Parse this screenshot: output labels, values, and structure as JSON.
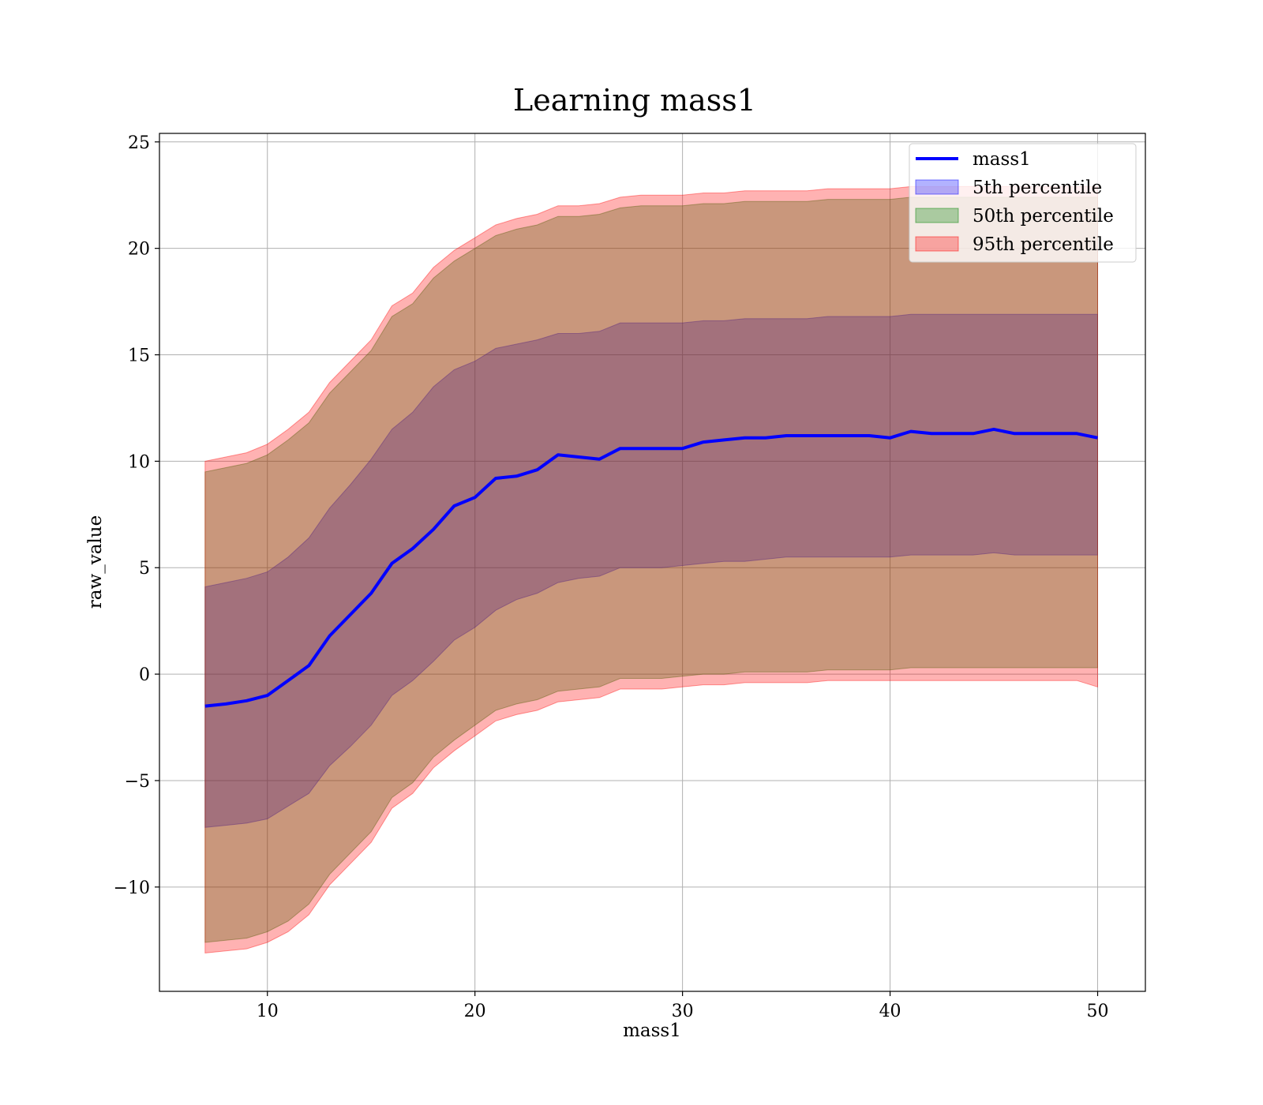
{
  "chart_data": {
    "type": "area",
    "title": "Learning mass1",
    "xlabel": "mass1",
    "ylabel": "raw_value",
    "xlim": [
      4.8,
      52.3
    ],
    "ylim": [
      -14.9,
      25.4
    ],
    "xticks": [
      10,
      20,
      30,
      40,
      50
    ],
    "xtick_labels": [
      "10",
      "20",
      "30",
      "40",
      "50"
    ],
    "yticks": [
      -10,
      -5,
      0,
      5,
      10,
      15,
      20,
      25
    ],
    "ytick_labels": [
      "−10",
      "−5",
      "0",
      "5",
      "10",
      "15",
      "20",
      "25"
    ],
    "grid": true,
    "legend_position": "top-right",
    "colors": {
      "line": "#0000ff",
      "band_5th": "#0000ff",
      "band_50th": "#008000",
      "band_95th": "#ff0000",
      "grid": "#b0b0b0"
    },
    "x": [
      7,
      8,
      9,
      10,
      11,
      12,
      13,
      14,
      15,
      16,
      17,
      18,
      19,
      20,
      21,
      22,
      23,
      24,
      25,
      26,
      27,
      28,
      29,
      30,
      31,
      32,
      33,
      34,
      35,
      36,
      37,
      38,
      39,
      40,
      41,
      42,
      43,
      44,
      45,
      46,
      47,
      48,
      49,
      50
    ],
    "series": [
      {
        "name": "mass1",
        "kind": "line",
        "values": [
          -1.5,
          -1.4,
          -1.25,
          -1.0,
          -0.3,
          0.4,
          1.8,
          2.8,
          3.8,
          5.2,
          5.9,
          6.8,
          7.9,
          8.3,
          9.2,
          9.3,
          9.6,
          10.3,
          10.2,
          10.1,
          10.6,
          10.6,
          10.6,
          10.6,
          10.9,
          11.0,
          11.1,
          11.1,
          11.2,
          11.2,
          11.2,
          11.2,
          11.2,
          11.1,
          11.4,
          11.3,
          11.3,
          11.3,
          11.5,
          11.3,
          11.3,
          11.3,
          11.3,
          11.1
        ]
      },
      {
        "name": "5th percentile",
        "kind": "band",
        "lower": [
          -7.2,
          -7.1,
          -7.0,
          -6.8,
          -6.2,
          -5.6,
          -4.3,
          -3.4,
          -2.4,
          -1.0,
          -0.3,
          0.6,
          1.6,
          2.2,
          3.0,
          3.5,
          3.8,
          4.3,
          4.5,
          4.6,
          5.0,
          5.0,
          5.0,
          5.1,
          5.2,
          5.3,
          5.3,
          5.4,
          5.5,
          5.5,
          5.5,
          5.5,
          5.5,
          5.5,
          5.6,
          5.6,
          5.6,
          5.6,
          5.7,
          5.6,
          5.6,
          5.6,
          5.6,
          5.6
        ],
        "upper": [
          4.1,
          4.3,
          4.5,
          4.8,
          5.5,
          6.4,
          7.8,
          8.9,
          10.1,
          11.5,
          12.3,
          13.5,
          14.3,
          14.7,
          15.3,
          15.5,
          15.7,
          16.0,
          16.0,
          16.1,
          16.5,
          16.5,
          16.5,
          16.5,
          16.6,
          16.6,
          16.7,
          16.7,
          16.7,
          16.7,
          16.8,
          16.8,
          16.8,
          16.8,
          16.9,
          16.9,
          16.9,
          16.9,
          16.9,
          16.9,
          16.9,
          16.9,
          16.9,
          16.9
        ]
      },
      {
        "name": "50th percentile",
        "kind": "band",
        "lower": [
          -12.6,
          -12.5,
          -12.4,
          -12.1,
          -11.6,
          -10.8,
          -9.4,
          -8.4,
          -7.4,
          -5.8,
          -5.1,
          -3.9,
          -3.1,
          -2.4,
          -1.7,
          -1.4,
          -1.2,
          -0.8,
          -0.7,
          -0.6,
          -0.2,
          -0.2,
          -0.2,
          -0.1,
          0.0,
          0.0,
          0.1,
          0.1,
          0.1,
          0.1,
          0.2,
          0.2,
          0.2,
          0.2,
          0.3,
          0.3,
          0.3,
          0.3,
          0.3,
          0.3,
          0.3,
          0.3,
          0.3,
          0.3
        ],
        "upper": [
          9.5,
          9.7,
          9.9,
          10.3,
          11.0,
          11.8,
          13.2,
          14.2,
          15.2,
          16.8,
          17.4,
          18.6,
          19.4,
          20.0,
          20.6,
          20.9,
          21.1,
          21.5,
          21.5,
          21.6,
          21.9,
          22.0,
          22.0,
          22.0,
          22.1,
          22.1,
          22.2,
          22.2,
          22.2,
          22.2,
          22.3,
          22.3,
          22.3,
          22.3,
          22.4,
          22.4,
          22.4,
          22.4,
          22.4,
          22.4,
          22.4,
          22.4,
          22.4,
          22.4
        ]
      },
      {
        "name": "95th percentile",
        "kind": "band",
        "lower": [
          -13.1,
          -13.0,
          -12.9,
          -12.6,
          -12.1,
          -11.3,
          -9.9,
          -8.9,
          -7.9,
          -6.3,
          -5.6,
          -4.4,
          -3.6,
          -2.9,
          -2.2,
          -1.9,
          -1.7,
          -1.3,
          -1.2,
          -1.1,
          -0.7,
          -0.7,
          -0.7,
          -0.6,
          -0.5,
          -0.5,
          -0.4,
          -0.4,
          -0.4,
          -0.4,
          -0.3,
          -0.3,
          -0.3,
          -0.3,
          -0.3,
          -0.3,
          -0.3,
          -0.3,
          -0.3,
          -0.3,
          -0.3,
          -0.3,
          -0.3,
          -0.6
        ],
        "upper": [
          10.0,
          10.2,
          10.4,
          10.8,
          11.5,
          12.3,
          13.7,
          14.7,
          15.7,
          17.3,
          17.9,
          19.1,
          19.9,
          20.5,
          21.1,
          21.4,
          21.6,
          22.0,
          22.0,
          22.1,
          22.4,
          22.5,
          22.5,
          22.5,
          22.6,
          22.6,
          22.7,
          22.7,
          22.7,
          22.7,
          22.8,
          22.8,
          22.8,
          22.8,
          22.9,
          22.9,
          22.9,
          22.9,
          22.9,
          22.9,
          22.9,
          22.9,
          22.9,
          22.9
        ]
      }
    ]
  }
}
